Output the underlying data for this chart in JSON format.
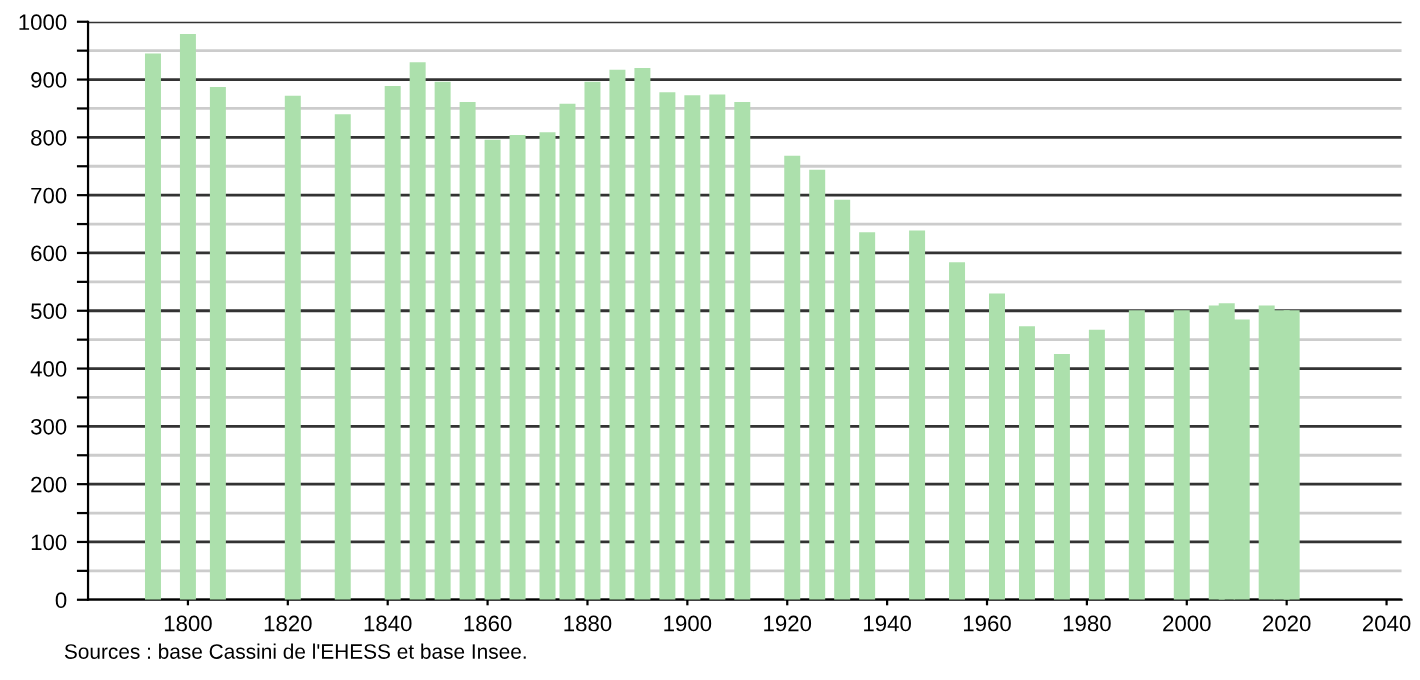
{
  "chart_data": {
    "type": "bar",
    "color": "#ace0ac",
    "x": [
      1793,
      1800,
      1806,
      1821,
      1831,
      1841,
      1846,
      1851,
      1856,
      1861,
      1866,
      1872,
      1876,
      1881,
      1886,
      1891,
      1896,
      1901,
      1906,
      1911,
      1921,
      1926,
      1931,
      1936,
      1946,
      1954,
      1962,
      1968,
      1975,
      1982,
      1990,
      1999,
      2006,
      2008,
      2011,
      2016,
      2019,
      2021
    ],
    "values": [
      945,
      979,
      887,
      872,
      840,
      889,
      930,
      896,
      861,
      796,
      804,
      809,
      858,
      896,
      917,
      920,
      878,
      873,
      874,
      861,
      768,
      744,
      692,
      636,
      639,
      584,
      530,
      473,
      425,
      467,
      501,
      501,
      509,
      513,
      485,
      509,
      501,
      501
    ],
    "xlim": [
      1780,
      2043
    ],
    "ylim": [
      0,
      1000
    ],
    "xticks": [
      1800,
      1820,
      1840,
      1860,
      1880,
      1900,
      1920,
      1940,
      1960,
      1980,
      2000,
      2020,
      2040
    ],
    "yticks": [
      0,
      {
        "value": 50,
        "label": null
      },
      100,
      {
        "value": 150,
        "label": null
      },
      200,
      {
        "value": 250,
        "label": null
      },
      300,
      {
        "value": 350,
        "label": null
      },
      400,
      {
        "value": 450,
        "label": null
      },
      500,
      {
        "value": 550,
        "label": null
      },
      600,
      {
        "value": 650,
        "label": null
      },
      700,
      {
        "value": 750,
        "label": null
      },
      800,
      {
        "value": 850,
        "label": null
      },
      900,
      {
        "value": 950,
        "label": null
      },
      1000
    ],
    "grid": "y",
    "annotations": [
      "Sources : base Cassini de l'EHESS et base Insee."
    ]
  }
}
